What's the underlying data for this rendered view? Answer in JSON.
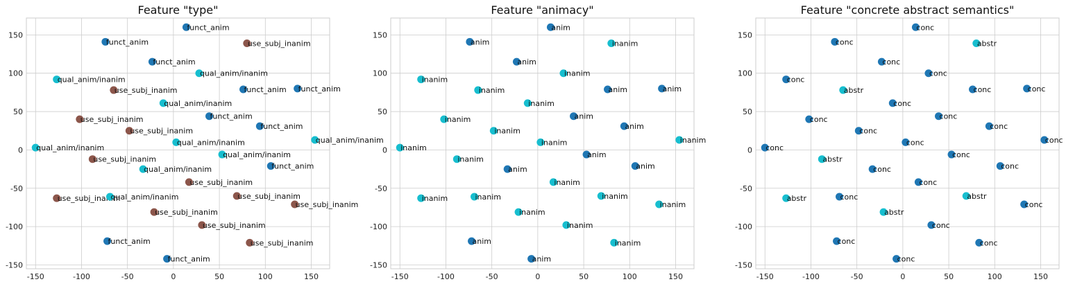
{
  "colors": {
    "funct_anim": "#1f77b4",
    "use_subj_inanim": "#8c564b",
    "qual_anim/inanim": "#17becf",
    "anim": "#1f77b4",
    "inanim": "#17becf",
    "conc": "#1f77b4",
    "abstr": "#17becf"
  },
  "chart_data": [
    {
      "type": "scatter",
      "title": "Feature \"type\"",
      "xlim": [
        -160,
        170
      ],
      "ylim": [
        -155,
        172
      ],
      "xticks": [
        -150,
        -100,
        -50,
        0,
        50,
        100,
        150
      ],
      "yticks": [
        -150,
        -100,
        -50,
        0,
        50,
        100,
        150
      ],
      "grid": true,
      "points": [
        {
          "x": 14,
          "y": 160,
          "label": "funct_anim"
        },
        {
          "x": -74,
          "y": 141,
          "label": "funct_anim"
        },
        {
          "x": 80,
          "y": 139,
          "label": "use_subj_inanim"
        },
        {
          "x": -23,
          "y": 115,
          "label": "funct_anim"
        },
        {
          "x": 28,
          "y": 100,
          "label": "qual_anim/inanim"
        },
        {
          "x": -127,
          "y": 92,
          "label": "qual_anim/inanim"
        },
        {
          "x": -65,
          "y": 78,
          "label": "use_subj_inanim"
        },
        {
          "x": 76,
          "y": 79,
          "label": "funct_anim"
        },
        {
          "x": 135,
          "y": 80,
          "label": "funct_anim"
        },
        {
          "x": -11,
          "y": 61,
          "label": "qual_anim/inanim"
        },
        {
          "x": 39,
          "y": 44,
          "label": "funct_anim"
        },
        {
          "x": -102,
          "y": 40,
          "label": "use_subj_inanim"
        },
        {
          "x": -48,
          "y": 25,
          "label": "use_subj_inanim"
        },
        {
          "x": 94,
          "y": 31,
          "label": "funct_anim"
        },
        {
          "x": -150,
          "y": 3,
          "label": "qual_anim/inanim"
        },
        {
          "x": 3,
          "y": 10,
          "label": "qual_anim/inanim"
        },
        {
          "x": 154,
          "y": 13,
          "label": "qual_anim/inanim"
        },
        {
          "x": 53,
          "y": -6,
          "label": "qual_anim/inanim"
        },
        {
          "x": -88,
          "y": -12,
          "label": "use_subj_inanim"
        },
        {
          "x": -33,
          "y": -25,
          "label": "qual_anim/inanim"
        },
        {
          "x": 106,
          "y": -21,
          "label": "funct_anim"
        },
        {
          "x": 17,
          "y": -42,
          "label": "use_subj_inanim"
        },
        {
          "x": -127,
          "y": -63,
          "label": "use_subj_inanim"
        },
        {
          "x": -69,
          "y": -61,
          "label": "qual_anim/inanim"
        },
        {
          "x": 69,
          "y": -60,
          "label": "use_subj_inanim"
        },
        {
          "x": 132,
          "y": -71,
          "label": "use_subj_inanim"
        },
        {
          "x": -21,
          "y": -81,
          "label": "use_subj_inanim"
        },
        {
          "x": 31,
          "y": -98,
          "label": "use_subj_inanim"
        },
        {
          "x": -72,
          "y": -119,
          "label": "funct_anim"
        },
        {
          "x": 83,
          "y": -121,
          "label": "use_subj_inanim"
        },
        {
          "x": -7,
          "y": -142,
          "label": "funct_anim"
        }
      ]
    },
    {
      "type": "scatter",
      "title": "Feature \"animacy\"",
      "xlim": [
        -160,
        170
      ],
      "ylim": [
        -155,
        172
      ],
      "xticks": [
        -150,
        -100,
        -50,
        0,
        50,
        100,
        150
      ],
      "yticks": [
        -150,
        -100,
        -50,
        0,
        50,
        100,
        150
      ],
      "grid": true,
      "points": [
        {
          "x": 14,
          "y": 160,
          "label": "anim"
        },
        {
          "x": -74,
          "y": 141,
          "label": "anim"
        },
        {
          "x": 80,
          "y": 139,
          "label": "inanim"
        },
        {
          "x": -23,
          "y": 115,
          "label": "anim"
        },
        {
          "x": 28,
          "y": 100,
          "label": "inanim"
        },
        {
          "x": -127,
          "y": 92,
          "label": "inanim"
        },
        {
          "x": -65,
          "y": 78,
          "label": "inanim"
        },
        {
          "x": 76,
          "y": 79,
          "label": "anim"
        },
        {
          "x": 135,
          "y": 80,
          "label": "anim"
        },
        {
          "x": -11,
          "y": 61,
          "label": "inanim"
        },
        {
          "x": 39,
          "y": 44,
          "label": "anim"
        },
        {
          "x": -102,
          "y": 40,
          "label": "inanim"
        },
        {
          "x": -48,
          "y": 25,
          "label": "inanim"
        },
        {
          "x": 94,
          "y": 31,
          "label": "anim"
        },
        {
          "x": -150,
          "y": 3,
          "label": "inanim"
        },
        {
          "x": 3,
          "y": 10,
          "label": "inanim"
        },
        {
          "x": 154,
          "y": 13,
          "label": "inanim"
        },
        {
          "x": 53,
          "y": -6,
          "label": "anim"
        },
        {
          "x": -88,
          "y": -12,
          "label": "inanim"
        },
        {
          "x": -33,
          "y": -25,
          "label": "anim"
        },
        {
          "x": 106,
          "y": -21,
          "label": "anim"
        },
        {
          "x": 17,
          "y": -42,
          "label": "inanim"
        },
        {
          "x": -127,
          "y": -63,
          "label": "inanim"
        },
        {
          "x": -69,
          "y": -61,
          "label": "inanim"
        },
        {
          "x": 69,
          "y": -60,
          "label": "inanim"
        },
        {
          "x": 132,
          "y": -71,
          "label": "inanim"
        },
        {
          "x": -21,
          "y": -81,
          "label": "inanim"
        },
        {
          "x": 31,
          "y": -98,
          "label": "inanim"
        },
        {
          "x": -72,
          "y": -119,
          "label": "anim"
        },
        {
          "x": 83,
          "y": -121,
          "label": "inanim"
        },
        {
          "x": -7,
          "y": -142,
          "label": "anim"
        }
      ]
    },
    {
      "type": "scatter",
      "title": "Feature \"concrete abstract semantics\"",
      "xlim": [
        -160,
        170
      ],
      "ylim": [
        -155,
        172
      ],
      "xticks": [
        -150,
        -100,
        -50,
        0,
        50,
        100,
        150
      ],
      "yticks": [
        -150,
        -100,
        -50,
        0,
        50,
        100,
        150
      ],
      "grid": true,
      "points": [
        {
          "x": 14,
          "y": 160,
          "label": "conc"
        },
        {
          "x": -74,
          "y": 141,
          "label": "conc"
        },
        {
          "x": 80,
          "y": 139,
          "label": "abstr"
        },
        {
          "x": -23,
          "y": 115,
          "label": "conc"
        },
        {
          "x": 28,
          "y": 100,
          "label": "conc"
        },
        {
          "x": -127,
          "y": 92,
          "label": "conc"
        },
        {
          "x": -65,
          "y": 78,
          "label": "abstr"
        },
        {
          "x": 76,
          "y": 79,
          "label": "conc"
        },
        {
          "x": 135,
          "y": 80,
          "label": "conc"
        },
        {
          "x": -11,
          "y": 61,
          "label": "conc"
        },
        {
          "x": 39,
          "y": 44,
          "label": "conc"
        },
        {
          "x": -102,
          "y": 40,
          "label": "conc"
        },
        {
          "x": -48,
          "y": 25,
          "label": "conc"
        },
        {
          "x": 94,
          "y": 31,
          "label": "conc"
        },
        {
          "x": -150,
          "y": 3,
          "label": "conc"
        },
        {
          "x": 3,
          "y": 10,
          "label": "conc"
        },
        {
          "x": 154,
          "y": 13,
          "label": "conc"
        },
        {
          "x": 53,
          "y": -6,
          "label": "conc"
        },
        {
          "x": -88,
          "y": -12,
          "label": "abstr"
        },
        {
          "x": -33,
          "y": -25,
          "label": "conc"
        },
        {
          "x": 106,
          "y": -21,
          "label": "conc"
        },
        {
          "x": 17,
          "y": -42,
          "label": "conc"
        },
        {
          "x": -127,
          "y": -63,
          "label": "abstr"
        },
        {
          "x": -69,
          "y": -61,
          "label": "conc"
        },
        {
          "x": 69,
          "y": -60,
          "label": "abstr"
        },
        {
          "x": 132,
          "y": -71,
          "label": "conc"
        },
        {
          "x": -21,
          "y": -81,
          "label": "abstr"
        },
        {
          "x": 31,
          "y": -98,
          "label": "conc"
        },
        {
          "x": -72,
          "y": -119,
          "label": "conc"
        },
        {
          "x": 83,
          "y": -121,
          "label": "conc"
        },
        {
          "x": -7,
          "y": -142,
          "label": "conc"
        }
      ]
    }
  ]
}
